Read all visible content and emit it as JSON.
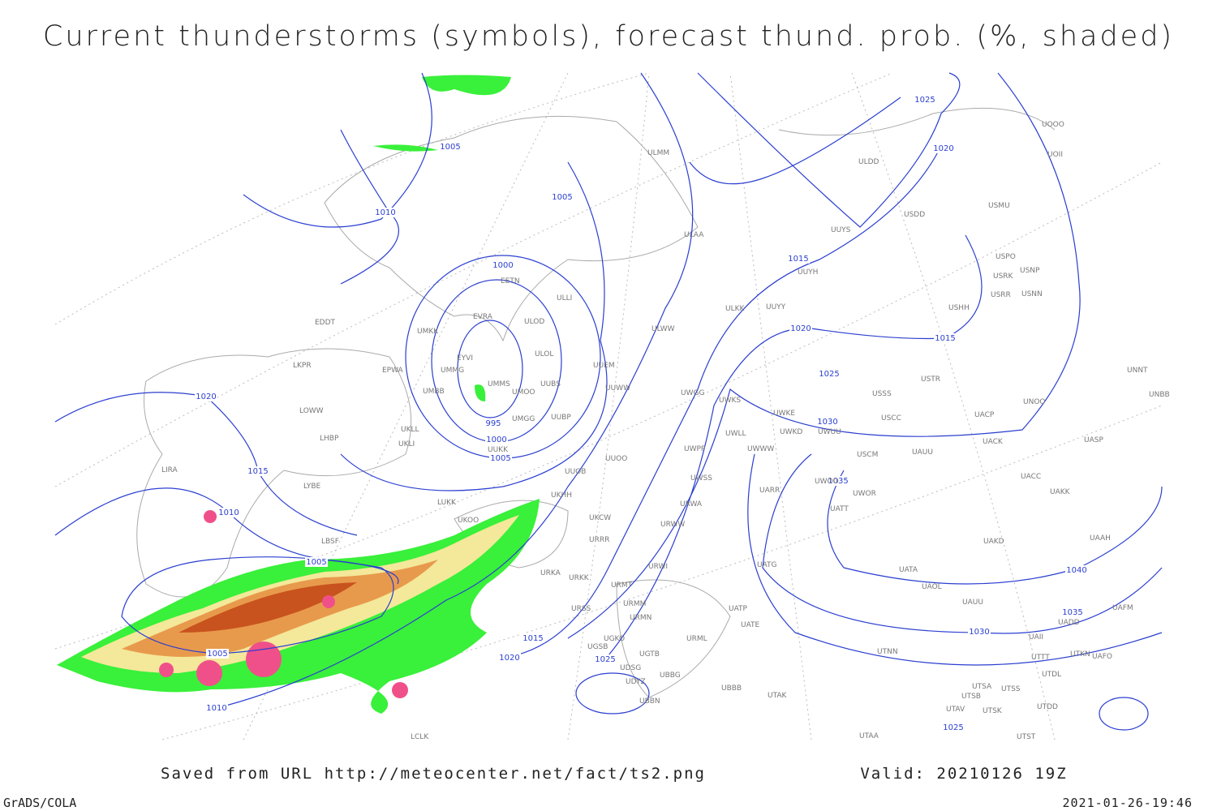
{
  "header": {
    "title": "Current thunderstorms (symbols), forecast thund. prob. (%, shaded)"
  },
  "map": {
    "isobar_labels": [
      1025,
      1005,
      1020,
      1005,
      1010,
      1015,
      1000,
      1020,
      1015,
      1020,
      1025,
      995,
      1030,
      1000,
      1005,
      1015,
      1035,
      1010,
      1005,
      1040,
      1035,
      1030,
      1015,
      1005,
      1020,
      1025,
      1010,
      1025
    ],
    "stations": [
      "ULMM",
      "ULDD",
      "USDD",
      "USMU",
      "UUYS",
      "ULAA",
      "USPO",
      "USRK",
      "USNP",
      "UUYH",
      "USRR",
      "USNN",
      "ULLI",
      "EETN",
      "EVRA",
      "ULOD",
      "UUYY",
      "ULKK",
      "USHH",
      "EDDT",
      "UMKK",
      "ULWW",
      "ULOL",
      "EYVI",
      "UUEM",
      "LKPR",
      "EPWA",
      "UMMG",
      "UMMS",
      "UUBS",
      "UMOO",
      "UUWW",
      "USTR",
      "UMBB",
      "USSS",
      "UNOO",
      "UNNT",
      "UNBB",
      "UWGG",
      "UWKS",
      "LOWW",
      "UMGG",
      "UUBP",
      "UWKE",
      "USCC",
      "UACP",
      "UKLL",
      "UWLL",
      "UWKD",
      "UWUU",
      "UACK",
      "UASP",
      "LHBP",
      "UKLI",
      "UUKK",
      "UWPP",
      "UWWW",
      "USCM",
      "UAUU",
      "UUOO",
      "LIRA",
      "UUOB",
      "UACC",
      "LYBE",
      "UWSS",
      "UAKK",
      "UWOO",
      "UWOR",
      "UARR",
      "UKHH",
      "LUKK",
      "URWA",
      "UATT",
      "UKCW",
      "UKOO",
      "URWW",
      "URRR",
      "UAKD",
      "UAAH",
      "LBSF",
      "UATG",
      "URWI",
      "UATA",
      "URKA",
      "URKK",
      "URMT",
      "UAOL",
      "UATP",
      "URMM",
      "URSS",
      "UAUU",
      "UAFM",
      "URMN",
      "UATE",
      "UADD",
      "UGKO",
      "URML",
      "UAII",
      "UGSB",
      "UGTB",
      "UTNN",
      "UTTT",
      "UTKN",
      "UAFO",
      "UDSG",
      "UTDL",
      "UBBG",
      "UDYZ",
      "UBBB",
      "UTSA",
      "UTSS",
      "UTSB",
      "UTAK",
      "UBBN",
      "UTAV",
      "UTSK",
      "UTDD",
      "UTAA",
      "UTST",
      "LCLK",
      "UOOO",
      "UOII"
    ]
  },
  "footer": {
    "source": "Saved from URL http://meteocenter.net/fact/ts2.png",
    "valid": "Valid: 20210126 19Z",
    "software": "GrADS/COLA",
    "timestamp": "2021-01-26-19:46"
  }
}
